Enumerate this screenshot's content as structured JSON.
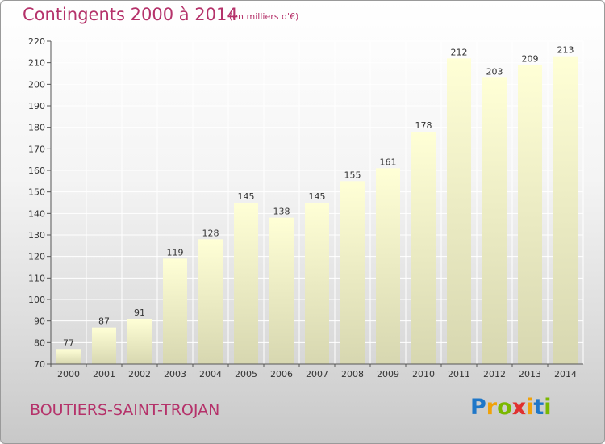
{
  "chart_data": {
    "type": "bar",
    "title": "Contingents 2000 à 2014",
    "subtitle": "(en milliers d'€)",
    "categories": [
      "2000",
      "2001",
      "2002",
      "2003",
      "2004",
      "2005",
      "2006",
      "2007",
      "2008",
      "2009",
      "2010",
      "2011",
      "2012",
      "2013",
      "2014"
    ],
    "values": [
      77,
      87,
      91,
      119,
      128,
      145,
      138,
      145,
      155,
      161,
      178,
      212,
      203,
      209,
      213
    ],
    "ylim": [
      70,
      220
    ],
    "yticks": [
      70,
      80,
      90,
      100,
      110,
      120,
      130,
      140,
      150,
      160,
      170,
      180,
      190,
      200,
      210,
      220
    ],
    "grid": true,
    "bar_color_top": "#ffffd6",
    "bar_color_bottom": "#d7d7b0"
  },
  "commune": "BOUTIERS-SAINT-TROJAN",
  "brand": {
    "letters": [
      "P",
      "r",
      "o",
      "x",
      "i",
      "t",
      "i"
    ],
    "colors": [
      "#1f77c8",
      "#f0a20a",
      "#7ab800",
      "#e03030",
      "#f0a20a",
      "#1f77c8",
      "#7ab800"
    ]
  },
  "colors": {
    "title": "#b5326a",
    "grid": "#ffffff",
    "axis": "#555555"
  }
}
